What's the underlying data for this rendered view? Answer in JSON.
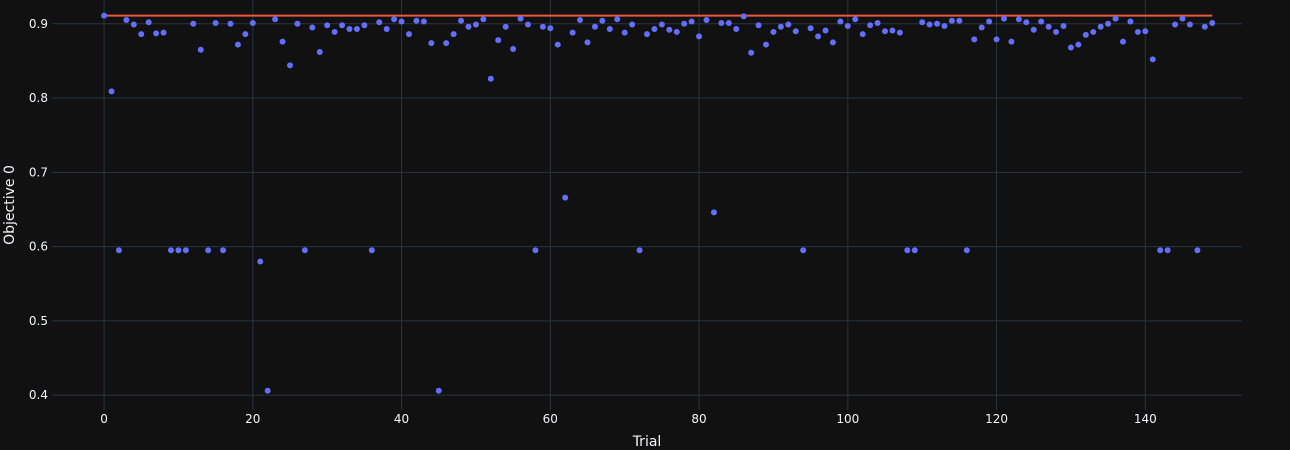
{
  "chart_data": {
    "type": "scatter",
    "xlabel": "Trial",
    "ylabel": "Objective 0",
    "xlim": [
      -7,
      153
    ],
    "ylim": [
      0.38,
      0.932
    ],
    "xticks": [
      0,
      20,
      40,
      60,
      80,
      100,
      120,
      140
    ],
    "yticks": [
      0.4,
      0.5,
      0.6,
      0.7,
      0.8,
      0.9
    ],
    "grid": true,
    "colors": {
      "background": "#111111",
      "grid": "#283442",
      "marker": "#636efa",
      "best_line": "#ef553b",
      "text": "#f2f5fa"
    },
    "series": [
      {
        "type": "scatter",
        "points": [
          [
            0,
            0.911
          ],
          [
            1,
            0.809
          ],
          [
            2,
            0.595
          ],
          [
            3,
            0.905
          ],
          [
            4,
            0.899
          ],
          [
            5,
            0.886
          ],
          [
            6,
            0.902
          ],
          [
            7,
            0.887
          ],
          [
            8,
            0.888
          ],
          [
            9,
            0.595
          ],
          [
            10,
            0.595
          ],
          [
            11,
            0.595
          ],
          [
            12,
            0.9
          ],
          [
            13,
            0.865
          ],
          [
            14,
            0.595
          ],
          [
            15,
            0.901
          ],
          [
            16,
            0.595
          ],
          [
            17,
            0.9
          ],
          [
            18,
            0.872
          ],
          [
            19,
            0.886
          ],
          [
            20,
            0.901
          ],
          [
            21,
            0.58
          ],
          [
            22,
            0.406
          ],
          [
            23,
            0.906
          ],
          [
            24,
            0.876
          ],
          [
            25,
            0.844
          ],
          [
            26,
            0.9
          ],
          [
            27,
            0.595
          ],
          [
            28,
            0.895
          ],
          [
            29,
            0.862
          ],
          [
            30,
            0.898
          ],
          [
            31,
            0.889
          ],
          [
            32,
            0.898
          ],
          [
            33,
            0.893
          ],
          [
            34,
            0.893
          ],
          [
            35,
            0.898
          ],
          [
            36,
            0.595
          ],
          [
            37,
            0.902
          ],
          [
            38,
            0.893
          ],
          [
            39,
            0.906
          ],
          [
            40,
            0.903
          ],
          [
            41,
            0.886
          ],
          [
            42,
            0.904
          ],
          [
            43,
            0.903
          ],
          [
            44,
            0.874
          ],
          [
            45,
            0.406
          ],
          [
            46,
            0.874
          ],
          [
            47,
            0.886
          ],
          [
            48,
            0.904
          ],
          [
            49,
            0.896
          ],
          [
            50,
            0.899
          ],
          [
            51,
            0.906
          ],
          [
            52,
            0.826
          ],
          [
            53,
            0.878
          ],
          [
            54,
            0.896
          ],
          [
            55,
            0.866
          ],
          [
            56,
            0.907
          ],
          [
            57,
            0.899
          ],
          [
            58,
            0.595
          ],
          [
            59,
            0.896
          ],
          [
            60,
            0.894
          ],
          [
            61,
            0.872
          ],
          [
            62,
            0.666
          ],
          [
            63,
            0.888
          ],
          [
            64,
            0.905
          ],
          [
            65,
            0.875
          ],
          [
            66,
            0.896
          ],
          [
            67,
            0.904
          ],
          [
            68,
            0.893
          ],
          [
            69,
            0.906
          ],
          [
            70,
            0.888
          ],
          [
            71,
            0.899
          ],
          [
            72,
            0.595
          ],
          [
            73,
            0.886
          ],
          [
            74,
            0.893
          ],
          [
            75,
            0.899
          ],
          [
            76,
            0.892
          ],
          [
            77,
            0.889
          ],
          [
            78,
            0.9
          ],
          [
            79,
            0.903
          ],
          [
            80,
            0.883
          ],
          [
            81,
            0.905
          ],
          [
            82,
            0.646
          ],
          [
            83,
            0.901
          ],
          [
            84,
            0.901
          ],
          [
            85,
            0.893
          ],
          [
            86,
            0.91
          ],
          [
            87,
            0.861
          ],
          [
            88,
            0.898
          ],
          [
            89,
            0.872
          ],
          [
            90,
            0.889
          ],
          [
            91,
            0.896
          ],
          [
            92,
            0.899
          ],
          [
            93,
            0.89
          ],
          [
            94,
            0.595
          ],
          [
            95,
            0.894
          ],
          [
            96,
            0.883
          ],
          [
            97,
            0.891
          ],
          [
            98,
            0.875
          ],
          [
            99,
            0.903
          ],
          [
            100,
            0.897
          ],
          [
            101,
            0.906
          ],
          [
            102,
            0.886
          ],
          [
            103,
            0.898
          ],
          [
            104,
            0.901
          ],
          [
            105,
            0.89
          ],
          [
            106,
            0.891
          ],
          [
            107,
            0.888
          ],
          [
            108,
            0.595
          ],
          [
            109,
            0.595
          ],
          [
            110,
            0.902
          ],
          [
            111,
            0.899
          ],
          [
            112,
            0.9
          ],
          [
            113,
            0.897
          ],
          [
            114,
            0.904
          ],
          [
            115,
            0.904
          ],
          [
            116,
            0.595
          ],
          [
            117,
            0.879
          ],
          [
            118,
            0.895
          ],
          [
            119,
            0.903
          ],
          [
            120,
            0.879
          ],
          [
            121,
            0.907
          ],
          [
            122,
            0.876
          ],
          [
            123,
            0.906
          ],
          [
            124,
            0.902
          ],
          [
            125,
            0.892
          ],
          [
            126,
            0.903
          ],
          [
            127,
            0.896
          ],
          [
            128,
            0.889
          ],
          [
            129,
            0.897
          ],
          [
            130,
            0.868
          ],
          [
            131,
            0.872
          ],
          [
            132,
            0.885
          ],
          [
            133,
            0.889
          ],
          [
            134,
            0.896
          ],
          [
            135,
            0.9
          ],
          [
            136,
            0.907
          ],
          [
            137,
            0.876
          ],
          [
            138,
            0.903
          ],
          [
            139,
            0.889
          ],
          [
            140,
            0.89
          ],
          [
            141,
            0.852
          ],
          [
            142,
            0.595
          ],
          [
            143,
            0.595
          ],
          [
            144,
            0.899
          ],
          [
            145,
            0.907
          ],
          [
            146,
            0.899
          ],
          [
            147,
            0.595
          ],
          [
            148,
            0.896
          ],
          [
            149,
            0.901
          ]
        ]
      },
      {
        "type": "line",
        "x": [
          0,
          149
        ],
        "y": [
          0.911,
          0.911
        ]
      }
    ]
  }
}
